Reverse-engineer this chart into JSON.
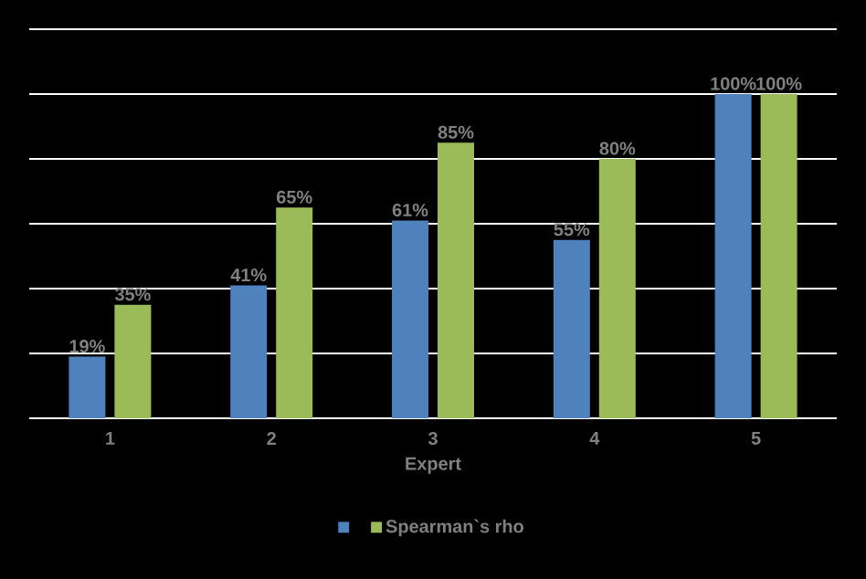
{
  "chart_data": {
    "type": "bar",
    "xlabel": "Expert",
    "categories": [
      "1",
      "2",
      "3",
      "4",
      "5"
    ],
    "series": [
      {
        "color": "#4f81bd",
        "values": [
          19,
          41,
          61,
          55,
          100
        ],
        "value_labels": [
          "19%",
          "41%",
          "61%",
          "55%",
          "100%"
        ]
      },
      {
        "name": "Spearman`s rho",
        "color": "#9bbb59",
        "values": [
          35,
          65,
          85,
          80,
          100
        ],
        "value_labels": [
          "35%",
          "65%",
          "85%",
          "80%",
          "100%"
        ]
      }
    ],
    "ylim": [
      0,
      120
    ],
    "yticks": [
      {
        "value": 0,
        "label": null
      },
      {
        "value": 20,
        "label": null
      },
      {
        "value": 40,
        "label": null
      },
      {
        "value": 60,
        "label": null
      },
      {
        "value": 80,
        "label": null
      },
      {
        "value": 100,
        "label": null
      },
      {
        "value": 120,
        "label": null
      }
    ],
    "tick_labels": "x",
    "grid": "y",
    "legend": "bottom"
  }
}
